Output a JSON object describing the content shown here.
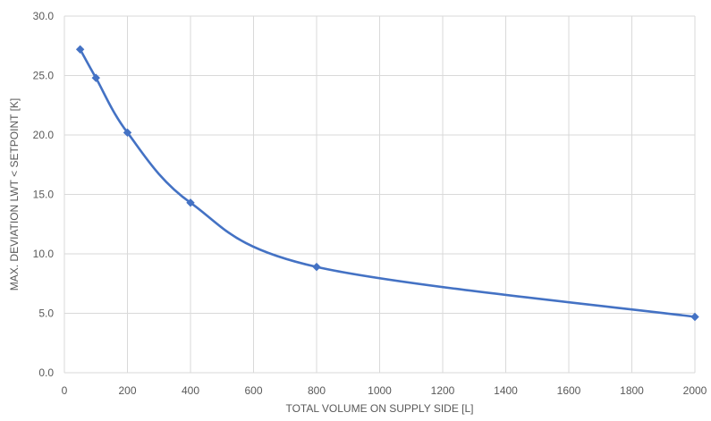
{
  "chart_data": {
    "type": "line",
    "title": "",
    "xlabel": "TOTAL VOLUME ON SUPPLY SIDE [L]",
    "ylabel": "MAX. DEVIATION LWT < SETPOINT [K]",
    "xlim": [
      0,
      2000
    ],
    "ylim": [
      0,
      30
    ],
    "x_ticks": [
      "0",
      "200",
      "400",
      "600",
      "800",
      "1000",
      "1200",
      "1400",
      "1600",
      "1800",
      "2000"
    ],
    "x_tick_values": [
      0,
      200,
      400,
      600,
      800,
      1000,
      1200,
      1400,
      1600,
      1800,
      2000
    ],
    "y_ticks": [
      "0.0",
      "5.0",
      "10.0",
      "15.0",
      "20.0",
      "25.0",
      "30.0"
    ],
    "y_tick_values": [
      0,
      5,
      10,
      15,
      20,
      25,
      30
    ],
    "grid": true,
    "legend": "none",
    "smooth": true,
    "series": [
      {
        "color": "#4472c4",
        "marker": "diamond",
        "x": [
          50,
          100,
          200,
          400,
          800,
          2000
        ],
        "values": [
          27.2,
          24.8,
          20.2,
          14.3,
          8.9,
          4.7
        ]
      }
    ]
  }
}
